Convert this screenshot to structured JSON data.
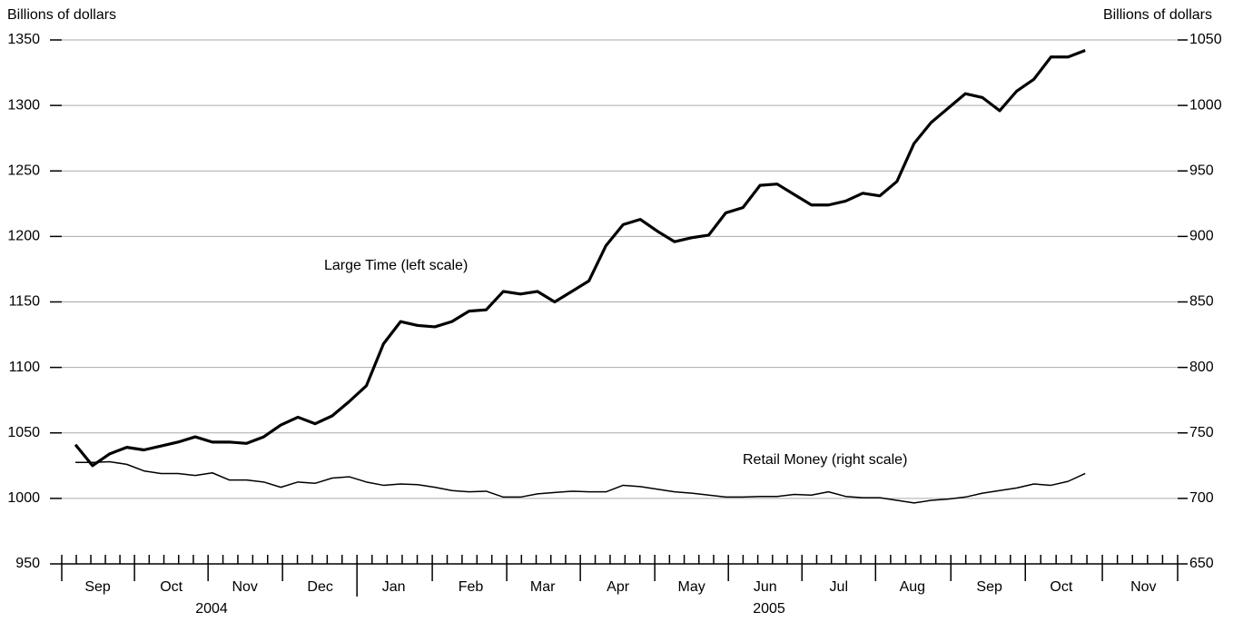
{
  "chart_data": {
    "type": "line",
    "y_label": "Billions of dollars",
    "y2_label": "Billions of dollars",
    "annotations": [
      "Large Time (left scale)",
      "Retail Money (right scale)"
    ],
    "x": [
      0,
      1,
      2,
      3,
      4,
      5,
      6,
      7,
      8,
      9,
      10,
      11,
      12,
      13,
      14,
      15,
      16,
      17,
      18,
      19,
      20,
      21,
      22,
      23,
      24,
      25,
      26,
      27,
      28,
      29,
      30,
      31,
      32,
      33,
      34,
      35,
      36,
      37,
      38,
      39,
      40,
      41,
      42,
      43,
      44,
      45,
      46,
      47,
      48,
      49,
      50,
      51,
      52,
      53,
      54,
      55,
      56,
      57,
      58,
      59
    ],
    "xlim": [
      -0.8,
      64.4
    ],
    "xticks": [
      {
        "value": 1.3,
        "label": "Sep"
      },
      {
        "value": 5.6,
        "label": "Oct"
      },
      {
        "value": 9.9,
        "label": "Nov"
      },
      {
        "value": 14.3,
        "label": "Dec"
      },
      {
        "value": 18.6,
        "label": "Jan"
      },
      {
        "value": 23.1,
        "label": "Feb"
      },
      {
        "value": 27.3,
        "label": "Mar"
      },
      {
        "value": 31.7,
        "label": "Apr"
      },
      {
        "value": 36.0,
        "label": "May"
      },
      {
        "value": 40.3,
        "label": "Jun"
      },
      {
        "value": 44.6,
        "label": "Jul"
      },
      {
        "value": 48.9,
        "label": "Aug"
      },
      {
        "value": 53.4,
        "label": "Sep"
      },
      {
        "value": 57.6,
        "label": "Oct"
      },
      {
        "value": 62.4,
        "label": "Nov"
      }
    ],
    "x_group_labels": [
      "2004",
      "2005"
    ],
    "ylim": [
      950,
      1350
    ],
    "yticks": [
      950,
      1000,
      1050,
      1100,
      1150,
      1200,
      1250,
      1300,
      1350
    ],
    "y2lim": [
      650,
      1050
    ],
    "y2ticks": [
      650,
      700,
      750,
      800,
      850,
      900,
      950,
      1000,
      1050
    ],
    "grid": true,
    "series": [
      {
        "name": "Large Time",
        "color": "#000000",
        "values": [
          1041,
          1025,
          1034,
          1039,
          1037,
          1040,
          1043,
          1047,
          1043,
          1043,
          1042,
          1047,
          1056,
          1062,
          1057,
          1063,
          1074,
          1086,
          1118,
          1135,
          1132,
          1131,
          1135,
          1143,
          1144,
          1158,
          1156,
          1158,
          1150,
          1158,
          1166,
          1193,
          1209,
          1213,
          1204,
          1196,
          1199,
          1201,
          1218,
          1222,
          1239,
          1240,
          1232,
          1224,
          1224,
          1227,
          1233,
          1231,
          1242,
          1271,
          1287,
          1298,
          1309,
          1306,
          1296,
          1311,
          1320,
          1337,
          1337,
          1342
        ]
      },
      {
        "name": "Retail Money",
        "color": "#000000",
        "axis": "y2",
        "values": [
          727.5,
          727.5,
          728,
          726,
          721,
          719,
          719,
          717.5,
          719.5,
          714,
          714,
          712.5,
          708.5,
          712.5,
          711.5,
          715.5,
          716.5,
          712.5,
          710,
          711,
          710.5,
          708.5,
          706,
          705,
          705.5,
          701,
          701,
          703.5,
          704.5,
          705.5,
          705,
          705,
          710,
          709,
          707,
          705,
          704,
          702.5,
          701,
          701,
          701.5,
          701.5,
          703,
          702.5,
          705,
          701.5,
          700.5,
          700.5,
          698.5,
          696.5,
          698.5,
          699.5,
          701,
          704,
          706,
          708,
          711,
          710,
          713,
          719
        ]
      }
    ]
  }
}
